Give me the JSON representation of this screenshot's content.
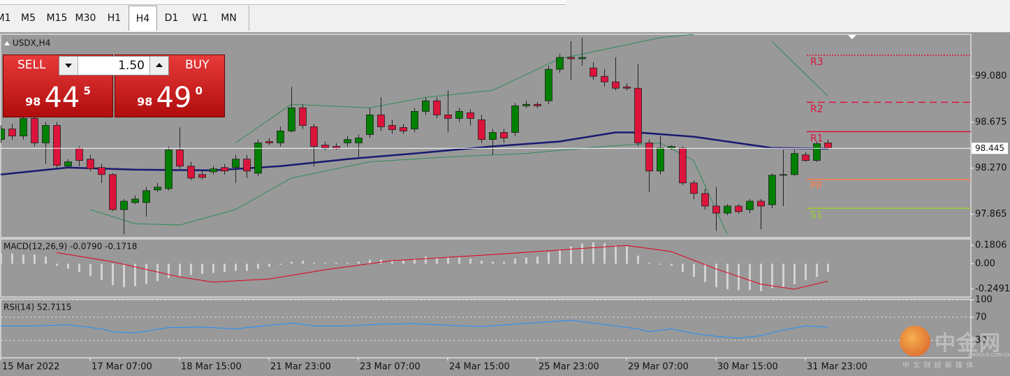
{
  "toolbar": {
    "timeframes": [
      "M1",
      "M5",
      "M15",
      "M30",
      "H1",
      "H4",
      "D1",
      "W1",
      "MN"
    ],
    "active": "H4"
  },
  "trade_panel": {
    "sell": "SELL",
    "buy": "BUY",
    "volume": "1.50",
    "bid": {
      "big": "98",
      "main": "44",
      "small": "5"
    },
    "ask": {
      "big": "98",
      "main": "49",
      "small": "0"
    }
  },
  "watermark": {
    "name": "中金网",
    "domain": "CNGOLD.COM.CN",
    "tagline": "中 文 财 经 新 媒 体"
  },
  "chart_data": [
    {
      "type": "candlestick",
      "title": "USDX,H4",
      "categories": [
        "15 Mar 2022",
        null,
        null,
        null,
        null,
        null,
        null,
        null,
        "17 Mar 07:00",
        null,
        null,
        null,
        null,
        null,
        null,
        null,
        "18 Mar 15:00",
        null,
        null,
        null,
        null,
        null,
        null,
        null,
        "21 Mar 23:00",
        null,
        null,
        null,
        null,
        null,
        null,
        null,
        "23 Mar 07:00",
        null,
        null,
        null,
        null,
        null,
        null,
        null,
        "24 Mar 15:00",
        null,
        null,
        null,
        null,
        null,
        null,
        null,
        "25 Mar 23:00",
        null,
        null,
        null,
        null,
        null,
        null,
        null,
        "29 Mar 07:00",
        null,
        null,
        null,
        null,
        null,
        null,
        null,
        "30 Mar 15:00",
        null,
        null,
        null,
        null,
        null,
        null,
        null,
        "31 Mar 23:00",
        null,
        null
      ],
      "open": [
        98.523,
        98.616,
        98.554,
        98.709,
        98.493,
        98.647,
        98.288,
        98.443,
        98.35,
        98.276,
        98.214,
        97.905,
        97.967,
        97.967,
        98.078,
        98.09,
        98.431,
        98.288,
        98.214,
        98.238,
        98.276,
        98.276,
        98.35,
        98.226,
        98.505,
        98.493,
        98.598,
        98.802,
        98.635,
        98.474,
        98.462,
        98.493,
        98.493,
        98.567,
        98.74,
        98.647,
        98.629,
        98.616,
        98.771,
        98.864,
        98.74,
        98.709,
        98.759,
        98.697,
        98.523,
        98.585,
        98.585,
        98.82,
        98.833,
        98.864,
        99.142,
        99.247,
        99.235,
        99.154,
        99.08,
        99.031,
        98.987,
        98.975,
        98.493,
        98.245,
        98.449,
        98.449,
        98.14,
        98.047,
        97.936,
        97.874,
        97.936,
        97.905,
        97.979,
        97.948,
        98.208,
        98.214,
        98.387,
        98.338,
        98.493
      ],
      "high": [
        98.647,
        98.66,
        98.771,
        98.74,
        98.678,
        98.678,
        98.35,
        98.462,
        98.387,
        98.307,
        98.226,
        97.998,
        98.029,
        98.103,
        98.14,
        98.462,
        98.629,
        98.326,
        98.245,
        98.288,
        98.307,
        98.387,
        98.387,
        98.523,
        98.536,
        98.635,
        98.987,
        98.833,
        98.66,
        98.505,
        98.493,
        98.554,
        98.567,
        98.802,
        98.894,
        98.697,
        98.66,
        98.802,
        98.894,
        98.894,
        98.956,
        98.802,
        98.79,
        98.74,
        98.616,
        98.616,
        98.845,
        98.864,
        98.851,
        99.173,
        99.278,
        99.389,
        99.42,
        99.204,
        99.142,
        99.247,
        99.018,
        99.191,
        98.523,
        98.554,
        98.474,
        98.462,
        98.164,
        98.09,
        98.103,
        97.954,
        97.954,
        97.998,
        97.998,
        98.226,
        98.431,
        98.431,
        98.412,
        98.505,
        98.523
      ],
      "low": [
        98.493,
        98.523,
        98.523,
        98.462,
        98.307,
        98.276,
        98.276,
        98.288,
        98.245,
        98.14,
        97.893,
        97.688,
        97.954,
        97.843,
        98.06,
        98.072,
        98.264,
        98.164,
        98.171,
        98.214,
        98.214,
        98.14,
        98.183,
        98.202,
        98.474,
        98.462,
        98.585,
        98.616,
        98.288,
        98.431,
        98.431,
        98.462,
        98.369,
        98.536,
        98.598,
        98.573,
        98.573,
        98.585,
        98.74,
        98.709,
        98.585,
        98.678,
        98.647,
        98.493,
        98.387,
        98.493,
        98.554,
        98.802,
        98.802,
        98.833,
        99.111,
        99.049,
        99.173,
        99.049,
        98.987,
        98.956,
        98.956,
        98.462,
        98.06,
        98.214,
        98.431,
        98.121,
        97.998,
        97.905,
        97.719,
        97.855,
        97.868,
        97.874,
        97.732,
        97.917,
        97.936,
        98.202,
        98.326,
        98.326,
        98.437
      ],
      "close": [
        98.616,
        98.554,
        98.709,
        98.493,
        98.647,
        98.295,
        98.326,
        98.338,
        98.264,
        98.214,
        97.905,
        97.979,
        97.998,
        98.072,
        98.103,
        98.431,
        98.288,
        98.183,
        98.189,
        98.264,
        98.245,
        98.35,
        98.245,
        98.493,
        98.493,
        98.598,
        98.802,
        98.647,
        98.462,
        98.449,
        98.443,
        98.523,
        98.536,
        98.74,
        98.635,
        98.61,
        98.598,
        98.771,
        98.864,
        98.74,
        98.709,
        98.771,
        98.709,
        98.523,
        98.585,
        98.536,
        98.82,
        98.833,
        98.82,
        99.142,
        99.247,
        99.235,
        99.247,
        99.08,
        99.031,
        98.975,
        98.975,
        98.493,
        98.245,
        98.449,
        98.462,
        98.14,
        98.047,
        97.936,
        97.874,
        97.936,
        97.887,
        97.979,
        97.936,
        98.208,
        98.214,
        98.4,
        98.338,
        98.486,
        98.449
      ],
      "up_color": "#008000",
      "down_color": "#dc143c",
      "overlays": [
        {
          "color": "#191970",
          "width": 2.5,
          "x": [
            0,
            6,
            12,
            19,
            25,
            31,
            37,
            44,
            50,
            55,
            57,
            62,
            69,
            74
          ],
          "values": [
            98.214,
            98.276,
            98.257,
            98.251,
            98.288,
            98.35,
            98.4,
            98.462,
            98.505,
            98.585,
            98.585,
            98.548,
            98.449,
            98.443
          ]
        },
        {
          "color": "#2e8b57",
          "width": 1,
          "x": [
            21,
            26,
            33,
            38,
            44,
            50,
            56,
            59,
            62,
            66,
            69,
            74
          ],
          "values": [
            98.493,
            98.833,
            98.802,
            98.894,
            98.956,
            99.235,
            99.358,
            99.42,
            99.451,
            null,
            99.389,
            98.907
          ]
        },
        {
          "color": "#2e8b57",
          "width": 1,
          "x": [
            8,
            12,
            16,
            21,
            26,
            33,
            40,
            47,
            54,
            59,
            62,
            65
          ],
          "values": [
            97.905,
            97.781,
            97.769,
            97.905,
            98.183,
            98.326,
            98.369,
            98.4,
            98.462,
            98.493,
            98.338,
            97.688
          ]
        }
      ],
      "levels": [
        {
          "name": "R3",
          "value": 99.266,
          "color": "#dc143c",
          "style": "dotted"
        },
        {
          "name": "R2",
          "value": 98.851,
          "color": "#dc143c",
          "style": "dashed"
        },
        {
          "name": "R1",
          "value": 98.592,
          "color": "#dc143c",
          "style": "solid"
        },
        {
          "name": "PP",
          "value": 98.171,
          "color": "#ff7f50",
          "style": "solid"
        },
        {
          "name": "S1",
          "value": 97.917,
          "color": "#9acd32",
          "style": "solid"
        }
      ],
      "price_line": {
        "value": 98.445,
        "label": "98.445"
      },
      "ylim": [
        97.658,
        99.451
      ],
      "yticks": [
        {
          "value": 99.08,
          "label": "99.080"
        },
        {
          "value": 98.675,
          "label": "98.675"
        },
        {
          "value": 98.27,
          "label": "98.270"
        },
        {
          "value": 97.865,
          "label": "97.865"
        }
      ],
      "grid": false
    },
    {
      "type": "macd",
      "title": "MACD(12,26,9) -0.0790 -0.1718",
      "values": [
        0.1,
        0.1,
        0.09,
        0.09,
        0.07,
        -0.02,
        -0.05,
        -0.08,
        -0.12,
        -0.16,
        -0.21,
        -0.23,
        -0.22,
        -0.2,
        -0.17,
        -0.14,
        -0.12,
        -0.11,
        -0.1,
        -0.09,
        -0.08,
        -0.07,
        -0.07,
        -0.05,
        -0.03,
        -0.01,
        0.02,
        0.03,
        0.01,
        0.01,
        0.01,
        0.01,
        0.02,
        0.04,
        0.04,
        0.03,
        0.03,
        0.05,
        0.07,
        0.06,
        0.06,
        0.06,
        0.05,
        0.03,
        0.02,
        0.02,
        0.05,
        0.06,
        0.07,
        0.11,
        0.14,
        0.17,
        0.2,
        0.21,
        0.2,
        0.18,
        0.17,
        0.08,
        0.01,
        -0.01,
        -0.02,
        -0.08,
        -0.13,
        -0.18,
        -0.23,
        -0.25,
        -0.26,
        -0.26,
        -0.27,
        -0.24,
        -0.23,
        -0.2,
        -0.16,
        -0.13,
        -0.079
      ],
      "color": "#d3d3d3",
      "signal": {
        "color": "#e0001a",
        "x": [
          5,
          10,
          16,
          19,
          24,
          29,
          35,
          44,
          52,
          56,
          60,
          64,
          68,
          71,
          74
        ],
        "values": [
          0.11,
          0.02,
          -0.13,
          -0.18,
          -0.15,
          -0.06,
          0.03,
          0.09,
          0.15,
          0.18,
          0.12,
          -0.05,
          -0.2,
          -0.25,
          -0.1718
        ]
      },
      "ylim": [
        -0.327,
        0.243
      ],
      "yticks": [
        0.1806,
        {
          "value": 0,
          "label": "0.00"
        },
        -0.2491
      ],
      "grid": false
    },
    {
      "type": "line",
      "title": "RSI(14) 52.7115",
      "x": [
        0,
        3,
        6,
        9,
        10,
        12,
        15,
        18,
        21,
        24,
        26,
        28,
        31,
        34,
        37,
        40,
        43,
        46,
        49,
        51,
        53,
        55,
        57,
        58,
        60,
        62,
        64,
        66,
        68,
        70,
        72,
        74
      ],
      "values": [
        55,
        55,
        57,
        50,
        45,
        43,
        52,
        53,
        50,
        56,
        60,
        55,
        55,
        58,
        59,
        56,
        54,
        58,
        62,
        65,
        60,
        55,
        50,
        45,
        50,
        42,
        37,
        34,
        38,
        48,
        55,
        52.7115
      ],
      "color": "#1e90ff",
      "ylim": [
        0,
        100
      ],
      "yticks": [
        100,
        70,
        30
      ],
      "grid": true
    }
  ]
}
